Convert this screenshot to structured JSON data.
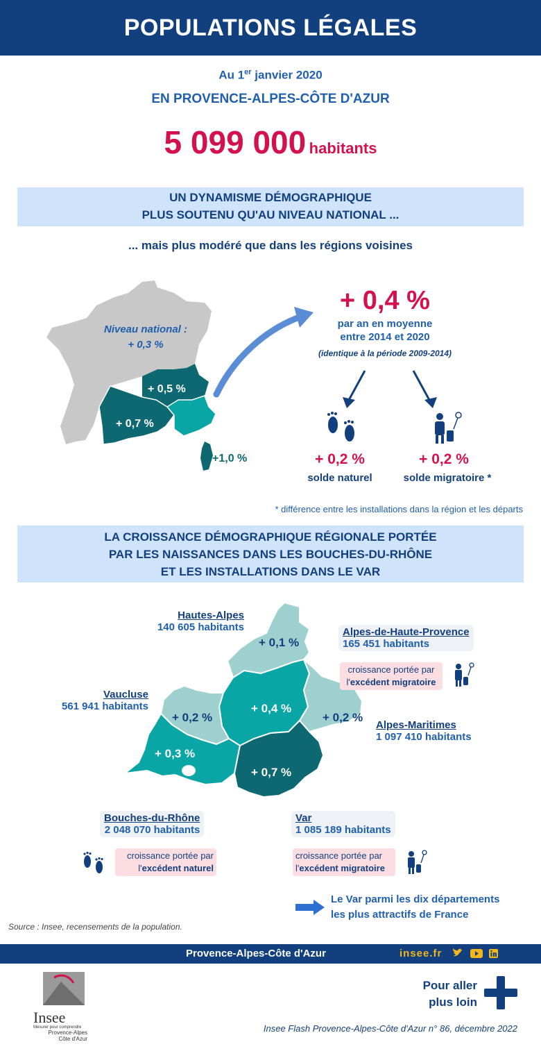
{
  "header": {
    "title": "POPULATIONS LÉGALES"
  },
  "intro": {
    "date_prefix": "Au 1",
    "date_sup": "er",
    "date_suffix": " janvier 2020",
    "region_title": "EN PROVENCE-ALPES-CÔTE D'AZUR",
    "population": "5 099 000",
    "population_unit": "habitants"
  },
  "section1": {
    "line1": "UN DYNAMISME DÉMOGRAPHIQUE",
    "line2": "PLUS SOUTENU QU'AU NIVEAU NATIONAL ...",
    "subtitle": "... mais plus modéré que dans les régions voisines"
  },
  "france_map": {
    "national_label": "Niveau national :",
    "national_value": "+ 0,3 %",
    "aura_value": "+ 0,5 %",
    "occitanie_value": "+ 0,7 %",
    "corse_value": "+1,0 %"
  },
  "growth": {
    "rate": "+ 0,4 %",
    "line1": "par an en moyenne",
    "line2": "entre 2014 et 2020",
    "note": "(identique à la période 2009-2014)",
    "natural_value": "+ 0,2 %",
    "natural_label": "solde naturel",
    "migratory_value": "+ 0,2 %",
    "migratory_label": "solde migratoire *",
    "footnote": "* différence entre les installations dans la région et les départs"
  },
  "section2": {
    "line1": "LA CROISSANCE DÉMOGRAPHIQUE RÉGIONALE PORTÉE",
    "line2": "PAR LES NAISSANCES DANS LES BOUCHES-DU-RHÔNE",
    "line3": "ET LES INSTALLATIONS DANS LE VAR"
  },
  "departments": {
    "hautes_alpes": {
      "name": "Hautes-Alpes",
      "population": "140 605 habitants",
      "growth": "+ 0,1 %"
    },
    "ahp": {
      "name": "Alpes-de-Haute-Provence",
      "population": "165 451 habitants",
      "growth": "+ 0,4 %",
      "note1": "croissance portée par",
      "note2": "l'",
      "note3": "excédent migratoire"
    },
    "vaucluse": {
      "name": "Vaucluse",
      "population": "561 941 habitants",
      "growth": "+ 0,2 %"
    },
    "alpes_maritimes": {
      "name": "Alpes-Maritimes",
      "population": "1 097 410 habitants",
      "growth": "+ 0,2 %"
    },
    "bdr": {
      "name": "Bouches-du-Rhône",
      "population": "2 048 070 habitants",
      "growth": "+ 0,3 %",
      "note1": "croissance portée par",
      "note2": "l'",
      "note3": "excédent naturel"
    },
    "var": {
      "name": "Var",
      "population": "1 085 189 habitants",
      "growth": "+ 0,7 %",
      "note1": "croissance portée par",
      "note2": "l'",
      "note3": "excédent migratoire"
    }
  },
  "var_link": {
    "line1": "Le Var parmi les dix départements",
    "line2": "les plus attractifs de France"
  },
  "source": "Source : Insee, recensements de la population.",
  "footer": {
    "region": "Provence-Alpes-Côte d'Azur",
    "site": "insee.fr",
    "more1": "Pour aller",
    "more2": "plus loin",
    "publication": "Insee Flash Provence-Alpes-Côte d'Azur n° 86, décembre 2022"
  },
  "logo": {
    "name": "Insee",
    "tagline": "Mesurer pour comprendre",
    "region1": "Provence-Alpes",
    "region2": "Côte d'Azur"
  },
  "colors": {
    "navy": "#123f7d",
    "blue": "#1f5fae",
    "pink": "#d4114f",
    "teal_dark": "#0d6872",
    "teal": "#0aa5a5",
    "teal_light": "#9fd0d0",
    "band": "#cfe3fb"
  }
}
